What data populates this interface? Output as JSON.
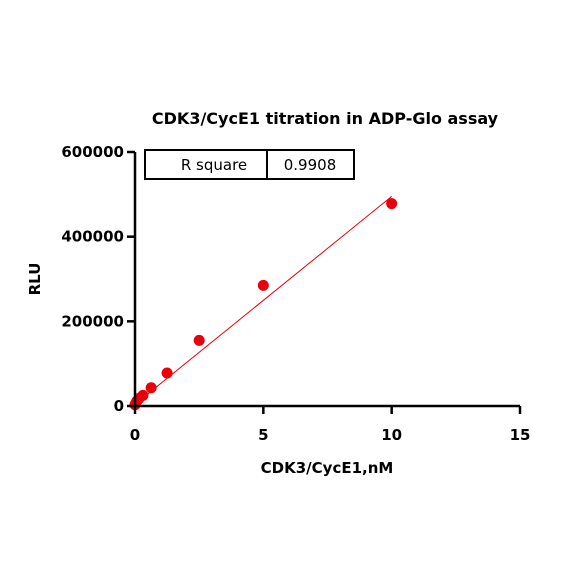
{
  "chart_data": {
    "type": "scatter",
    "title": "CDK3/CycE1 titration in ADP-Glo assay",
    "xlabel": "CDK3/CycE1,nM",
    "ylabel": "RLU",
    "xlim": [
      0,
      15
    ],
    "ylim": [
      0,
      600000
    ],
    "x_ticks": [
      0,
      5,
      10,
      15
    ],
    "x_tick_labels": [
      "0",
      "5",
      "10",
      "15"
    ],
    "y_ticks": [
      0,
      200000,
      400000,
      600000
    ],
    "y_tick_labels": [
      "0",
      "200000",
      "400000",
      "600000"
    ],
    "grid": false,
    "series": [
      {
        "x": [
          0,
          0.02,
          0.04,
          0.08,
          0.16,
          0.31,
          0.63,
          1.25,
          2.5,
          5,
          10
        ],
        "y": [
          3000,
          5000,
          8000,
          12000,
          18000,
          25000,
          43000,
          78000,
          155000,
          285000,
          478000
        ],
        "color": "#e8000b"
      }
    ],
    "fit_line": {
      "x": [
        0,
        10
      ],
      "y": [
        4000,
        495000
      ],
      "color": "#e8000b"
    },
    "stats_table": {
      "label": "R square",
      "value": "0.9908"
    }
  }
}
